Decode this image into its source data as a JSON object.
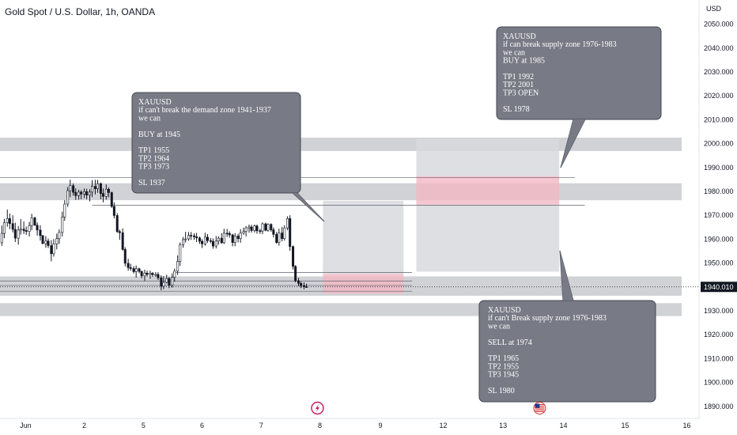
{
  "header": {
    "title": "Gold Spot / U.S. Dollar, 1h, OANDA",
    "currency": "USD"
  },
  "colors": {
    "zone_gray": "#c9cacf",
    "box_gray": "#d8d9dd",
    "box_red": "#f3b8c3",
    "callout_bg": "#787b86",
    "callout_border": "#434651",
    "candle": "#131722",
    "price_label_bg": "#131722"
  },
  "chart_data": {
    "type": "candlestick",
    "symbol": "XAUUSD",
    "ylim": [
      1887,
      2057
    ],
    "xlim": [
      0,
      16
    ],
    "y_ticks": [
      2050,
      2040,
      2030,
      2020,
      2010,
      2000,
      1990,
      1980,
      1970,
      1960,
      1950,
      1940,
      1930,
      1920,
      1910,
      1900,
      1890
    ],
    "y_tick_labels": [
      "2050.000",
      "2040.000",
      "2030.000",
      "2020.000",
      "2010.000",
      "2000.000",
      "1990.000",
      "1980.000",
      "1970.000",
      "1960.000",
      "1950.000",
      "1940.000",
      "1930.000",
      "1920.000",
      "1910.000",
      "1900.000",
      "1890.000"
    ],
    "x_ticks": [
      {
        "x": 0.42,
        "label": "Jun"
      },
      {
        "x": 1.38,
        "label": "2"
      },
      {
        "x": 2.35,
        "label": "5"
      },
      {
        "x": 3.31,
        "label": "6"
      },
      {
        "x": 4.28,
        "label": "7"
      },
      {
        "x": 5.24,
        "label": "8"
      },
      {
        "x": 6.23,
        "label": "9"
      },
      {
        "x": 7.26,
        "label": "12"
      },
      {
        "x": 8.24,
        "label": "13"
      },
      {
        "x": 9.23,
        "label": "14"
      },
      {
        "x": 10.24,
        "label": "15"
      },
      {
        "x": 11.25,
        "label": "16"
      }
    ],
    "current_price": 1940.01,
    "current_price_label": "1940.010",
    "zones": [
      {
        "y1": 1996.9,
        "y2": 2002.5
      },
      {
        "y1": 1976.3,
        "y2": 1983.4
      },
      {
        "y1": 1936.3,
        "y2": 1944.4
      },
      {
        "y1": 1927.8,
        "y2": 1933.2
      }
    ],
    "lines": [
      {
        "y": 1985.8,
        "x1": 0,
        "x2": 9.42
      },
      {
        "y": 1974.2,
        "x1": 1.51,
        "x2": 9.58
      },
      {
        "y": 1946.1,
        "x1": 2.83,
        "x2": 6.75
      },
      {
        "y": 1942.5,
        "x1": 0,
        "x2": 6.75
      },
      {
        "y": 1940.6,
        "x1": 0,
        "x2": 6.75
      },
      {
        "y": 1938.2,
        "x1": 0,
        "x2": 6.75
      }
    ],
    "boxes": [
      {
        "kind": "gray",
        "x1": 5.29,
        "x2": 6.61,
        "y1": 1945.4,
        "y2": 1976.0
      },
      {
        "kind": "red",
        "x1": 5.29,
        "x2": 6.61,
        "y1": 1937.2,
        "y2": 1945.4
      },
      {
        "kind": "gray",
        "x1": 6.82,
        "x2": 9.16,
        "y1": 1986.4,
        "y2": 2002.0
      },
      {
        "kind": "red",
        "x1": 6.82,
        "x2": 9.16,
        "y1": 1974.4,
        "y2": 1986.4
      },
      {
        "kind": "gray",
        "x1": 6.82,
        "x2": 9.16,
        "y1": 1946.4,
        "y2": 1974.4
      }
    ],
    "ohlc": [
      [
        0.03,
        1958.5,
        1965.7,
        1957.2,
        1962.4
      ],
      [
        0.07,
        1962.4,
        1968.5,
        1960.4,
        1966.9
      ],
      [
        0.12,
        1966.9,
        1972.4,
        1965.2,
        1968.6
      ],
      [
        0.16,
        1968.6,
        1970.7,
        1964.2,
        1966.5
      ],
      [
        0.21,
        1966.5,
        1970.0,
        1962.8,
        1964.1
      ],
      [
        0.25,
        1964.1,
        1966.9,
        1958.8,
        1960.4
      ],
      [
        0.3,
        1960.4,
        1965.5,
        1957.7,
        1963.8
      ],
      [
        0.34,
        1963.8,
        1968.4,
        1961.9,
        1964.2
      ],
      [
        0.39,
        1964.2,
        1967.4,
        1962.2,
        1963.6
      ],
      [
        0.43,
        1963.6,
        1965.3,
        1961.8,
        1963.2
      ],
      [
        0.48,
        1963.2,
        1967.2,
        1961.1,
        1965.7
      ],
      [
        0.52,
        1965.7,
        1970.6,
        1963.7,
        1968.9
      ],
      [
        0.57,
        1968.9,
        1969.4,
        1965.6,
        1965.8
      ],
      [
        0.61,
        1965.8,
        1967.0,
        1961.5,
        1963.8
      ],
      [
        0.66,
        1963.8,
        1965.8,
        1959.4,
        1961.5
      ],
      [
        0.7,
        1961.5,
        1961.7,
        1958.0,
        1958.1
      ],
      [
        0.75,
        1958.1,
        1961.3,
        1956.4,
        1959.2
      ],
      [
        0.79,
        1959.2,
        1960.3,
        1956.3,
        1957.3
      ],
      [
        0.84,
        1957.3,
        1959.6,
        1950.7,
        1953.9
      ],
      [
        0.88,
        1953.9,
        1960.0,
        1952.7,
        1958.0
      ],
      [
        0.93,
        1958.0,
        1962.3,
        1955.7,
        1960.2
      ],
      [
        0.97,
        1960.2,
        1964.1,
        1958.0,
        1962.8
      ],
      [
        1.02,
        1962.8,
        1971.5,
        1961.1,
        1969.3
      ],
      [
        1.06,
        1969.3,
        1976.3,
        1967.7,
        1974.7
      ],
      [
        1.11,
        1974.7,
        1981.8,
        1973.5,
        1980.3
      ],
      [
        1.15,
        1980.3,
        1984.9,
        1977.6,
        1982.4
      ],
      [
        1.2,
        1982.4,
        1983.3,
        1978.2,
        1979.6
      ],
      [
        1.24,
        1979.6,
        1981.3,
        1976.4,
        1978.2
      ],
      [
        1.29,
        1978.2,
        1980.7,
        1976.5,
        1979.7
      ],
      [
        1.33,
        1979.7,
        1980.5,
        1976.7,
        1978.9
      ],
      [
        1.38,
        1978.9,
        1981.2,
        1977.2,
        1979.9
      ],
      [
        1.42,
        1979.9,
        1981.1,
        1976.7,
        1978.4
      ],
      [
        1.47,
        1978.4,
        1980.9,
        1975.8,
        1979.7
      ],
      [
        1.51,
        1979.7,
        1984.7,
        1977.6,
        1982.1
      ],
      [
        1.56,
        1982.1,
        1984.8,
        1978.7,
        1981.1
      ],
      [
        1.6,
        1981.1,
        1984.8,
        1979.4,
        1983.2
      ],
      [
        1.65,
        1983.2,
        1983.7,
        1976.7,
        1979.1
      ],
      [
        1.69,
        1979.1,
        1981.2,
        1975.4,
        1977.9
      ],
      [
        1.74,
        1977.9,
        1982.9,
        1976.5,
        1980.9
      ],
      [
        1.78,
        1980.9,
        1981.6,
        1977.5,
        1979.5
      ],
      [
        1.83,
        1979.5,
        1979.9,
        1973.1,
        1973.7
      ],
      [
        1.87,
        1973.7,
        1975.4,
        1968.7,
        1969.9
      ],
      [
        1.92,
        1969.9,
        1970.9,
        1962.6,
        1963.2
      ],
      [
        1.96,
        1963.2,
        1964.0,
        1959.7,
        1962.7
      ],
      [
        2.01,
        1962.7,
        1964.5,
        1955.2,
        1955.7
      ],
      [
        2.05,
        1955.7,
        1956.6,
        1948.6,
        1949.9
      ],
      [
        2.1,
        1949.9,
        1951.8,
        1946.8,
        1948.1
      ],
      [
        2.14,
        1948.1,
        1949.7,
        1946.8,
        1947.7
      ],
      [
        2.19,
        1947.7,
        1948.7,
        1945.6,
        1946.4
      ],
      [
        2.23,
        1946.4,
        1949.0,
        1943.9,
        1947.6
      ],
      [
        2.28,
        1947.6,
        1948.0,
        1945.7,
        1946.5
      ],
      [
        2.32,
        1946.5,
        1946.8,
        1943.6,
        1944.6
      ],
      [
        2.37,
        1944.6,
        1947.2,
        1942.5,
        1945.8
      ],
      [
        2.41,
        1945.8,
        1946.8,
        1944.3,
        1945.2
      ],
      [
        2.46,
        1945.2,
        1946.8,
        1943.4,
        1945.7
      ],
      [
        2.5,
        1945.7,
        1946.2,
        1944.2,
        1945.1
      ],
      [
        2.55,
        1945.1,
        1946.2,
        1944.2,
        1945.2
      ],
      [
        2.59,
        1945.2,
        1946.2,
        1942.9,
        1943.8
      ],
      [
        2.64,
        1943.8,
        1944.9,
        1938.6,
        1940.3
      ],
      [
        2.68,
        1940.3,
        1944.5,
        1939.1,
        1941.9
      ],
      [
        2.73,
        1941.9,
        1945.1,
        1941.5,
        1943.5
      ],
      [
        2.77,
        1943.5,
        1944.2,
        1939.5,
        1940.7
      ],
      [
        2.82,
        1940.7,
        1945.6,
        1939.7,
        1944.0
      ],
      [
        2.86,
        1944.0,
        1947.7,
        1942.2,
        1946.6
      ],
      [
        2.91,
        1946.6,
        1953.2,
        1945.0,
        1950.7
      ],
      [
        2.95,
        1950.7,
        1958.6,
        1948.8,
        1957.7
      ],
      [
        3.0,
        1957.7,
        1960.9,
        1956.4,
        1959.8
      ],
      [
        3.04,
        1959.8,
        1963.1,
        1958.6,
        1960.1
      ],
      [
        3.09,
        1960.1,
        1963.0,
        1959.3,
        1961.6
      ],
      [
        3.13,
        1961.6,
        1963.0,
        1959.7,
        1961.4
      ],
      [
        3.18,
        1961.4,
        1962.4,
        1959.7,
        1961.0
      ],
      [
        3.22,
        1961.0,
        1962.6,
        1958.8,
        1960.5
      ],
      [
        3.27,
        1960.5,
        1961.1,
        1958.0,
        1959.1
      ],
      [
        3.31,
        1959.1,
        1960.0,
        1956.3,
        1958.0
      ],
      [
        3.36,
        1958.0,
        1962.7,
        1957.3,
        1960.8
      ],
      [
        3.4,
        1960.8,
        1962.1,
        1958.4,
        1959.4
      ],
      [
        3.45,
        1959.4,
        1960.5,
        1958.3,
        1959.1
      ],
      [
        3.49,
        1959.1,
        1960.3,
        1956.0,
        1957.1
      ],
      [
        3.54,
        1957.1,
        1961.3,
        1956.1,
        1959.2
      ],
      [
        3.58,
        1959.2,
        1961.2,
        1957.7,
        1960.4
      ],
      [
        3.63,
        1960.4,
        1962.5,
        1958.0,
        1958.5
      ],
      [
        3.67,
        1958.5,
        1964.3,
        1958.0,
        1962.5
      ],
      [
        3.72,
        1962.5,
        1964.3,
        1960.9,
        1962.4
      ],
      [
        3.76,
        1962.4,
        1963.3,
        1960.6,
        1961.8
      ],
      [
        3.81,
        1961.8,
        1962.2,
        1957.0,
        1958.6
      ],
      [
        3.85,
        1958.6,
        1962.5,
        1957.0,
        1961.3
      ],
      [
        3.9,
        1961.3,
        1962.2,
        1958.6,
        1960.2
      ],
      [
        3.94,
        1960.2,
        1964.2,
        1958.5,
        1962.6
      ],
      [
        3.99,
        1962.6,
        1964.8,
        1961.8,
        1963.2
      ],
      [
        4.03,
        1963.2,
        1965.5,
        1961.1,
        1964.7
      ],
      [
        4.08,
        1964.7,
        1966.1,
        1962.7,
        1965.1
      ],
      [
        4.12,
        1965.1,
        1966.0,
        1962.8,
        1963.6
      ],
      [
        4.17,
        1963.6,
        1966.1,
        1962.8,
        1965.5
      ],
      [
        4.21,
        1965.5,
        1966.1,
        1962.3,
        1963.5
      ],
      [
        4.26,
        1963.5,
        1964.3,
        1962.2,
        1963.4
      ],
      [
        4.3,
        1963.4,
        1967.0,
        1962.1,
        1966.4
      ],
      [
        4.35,
        1966.4,
        1966.9,
        1963.3,
        1963.7
      ],
      [
        4.39,
        1963.7,
        1966.6,
        1963.1,
        1966.2
      ],
      [
        4.44,
        1966.2,
        1966.6,
        1963.1,
        1963.9
      ],
      [
        4.48,
        1963.9,
        1964.9,
        1960.7,
        1962.0
      ],
      [
        4.53,
        1962.0,
        1963.0,
        1958.1,
        1958.6
      ],
      [
        4.57,
        1958.6,
        1964.3,
        1957.3,
        1962.6
      ],
      [
        4.62,
        1962.6,
        1965.1,
        1959.1,
        1960.2
      ],
      [
        4.66,
        1960.2,
        1965.8,
        1959.4,
        1964.7
      ],
      [
        4.71,
        1964.7,
        1969.6,
        1963.7,
        1968.6
      ],
      [
        4.75,
        1968.6,
        1970.0,
        1955.1,
        1956.9
      ],
      [
        4.8,
        1956.9,
        1957.3,
        1947.3,
        1948.6
      ],
      [
        4.84,
        1948.6,
        1949.1,
        1941.9,
        1942.6
      ],
      [
        4.89,
        1942.6,
        1943.8,
        1940.3,
        1941.5
      ],
      [
        4.93,
        1941.5,
        1942.2,
        1939.5,
        1940.5
      ],
      [
        4.98,
        1940.5,
        1941.9,
        1939.0,
        1940.1
      ],
      [
        5.02,
        1940.1,
        1941.3,
        1939.6,
        1940.0
      ]
    ],
    "callouts": [
      {
        "lines": [
          "XAUUSD",
          "if can't break the demand zone 1941-1937",
          "we can",
          "",
          "BUY at 1945",
          "",
          "TP1 1955",
          "TP2 1964",
          "TP3 1973",
          "",
          "SL 1937"
        ]
      },
      {
        "lines": [
          "XAUUSD",
          "if can break  supply zone 1976-1983",
          "we can",
          "BUY at 1985",
          "",
          "TP1 1992",
          "TP2 2001",
          "TP3 OPEN",
          "",
          "SL 1978"
        ]
      },
      {
        "lines": [
          "XAUUSD",
          "if can't Break supply zone 1976-1983",
          "we can",
          "",
          "SELL at 1974",
          "",
          "TP1 1965",
          "TP2 1955",
          "TP3 1945",
          "",
          "SL 1980"
        ]
      }
    ],
    "markers": [
      {
        "name": "flash-icon",
        "x": 5.2
      },
      {
        "name": "us-flag-icon",
        "x": 8.84
      }
    ]
  }
}
